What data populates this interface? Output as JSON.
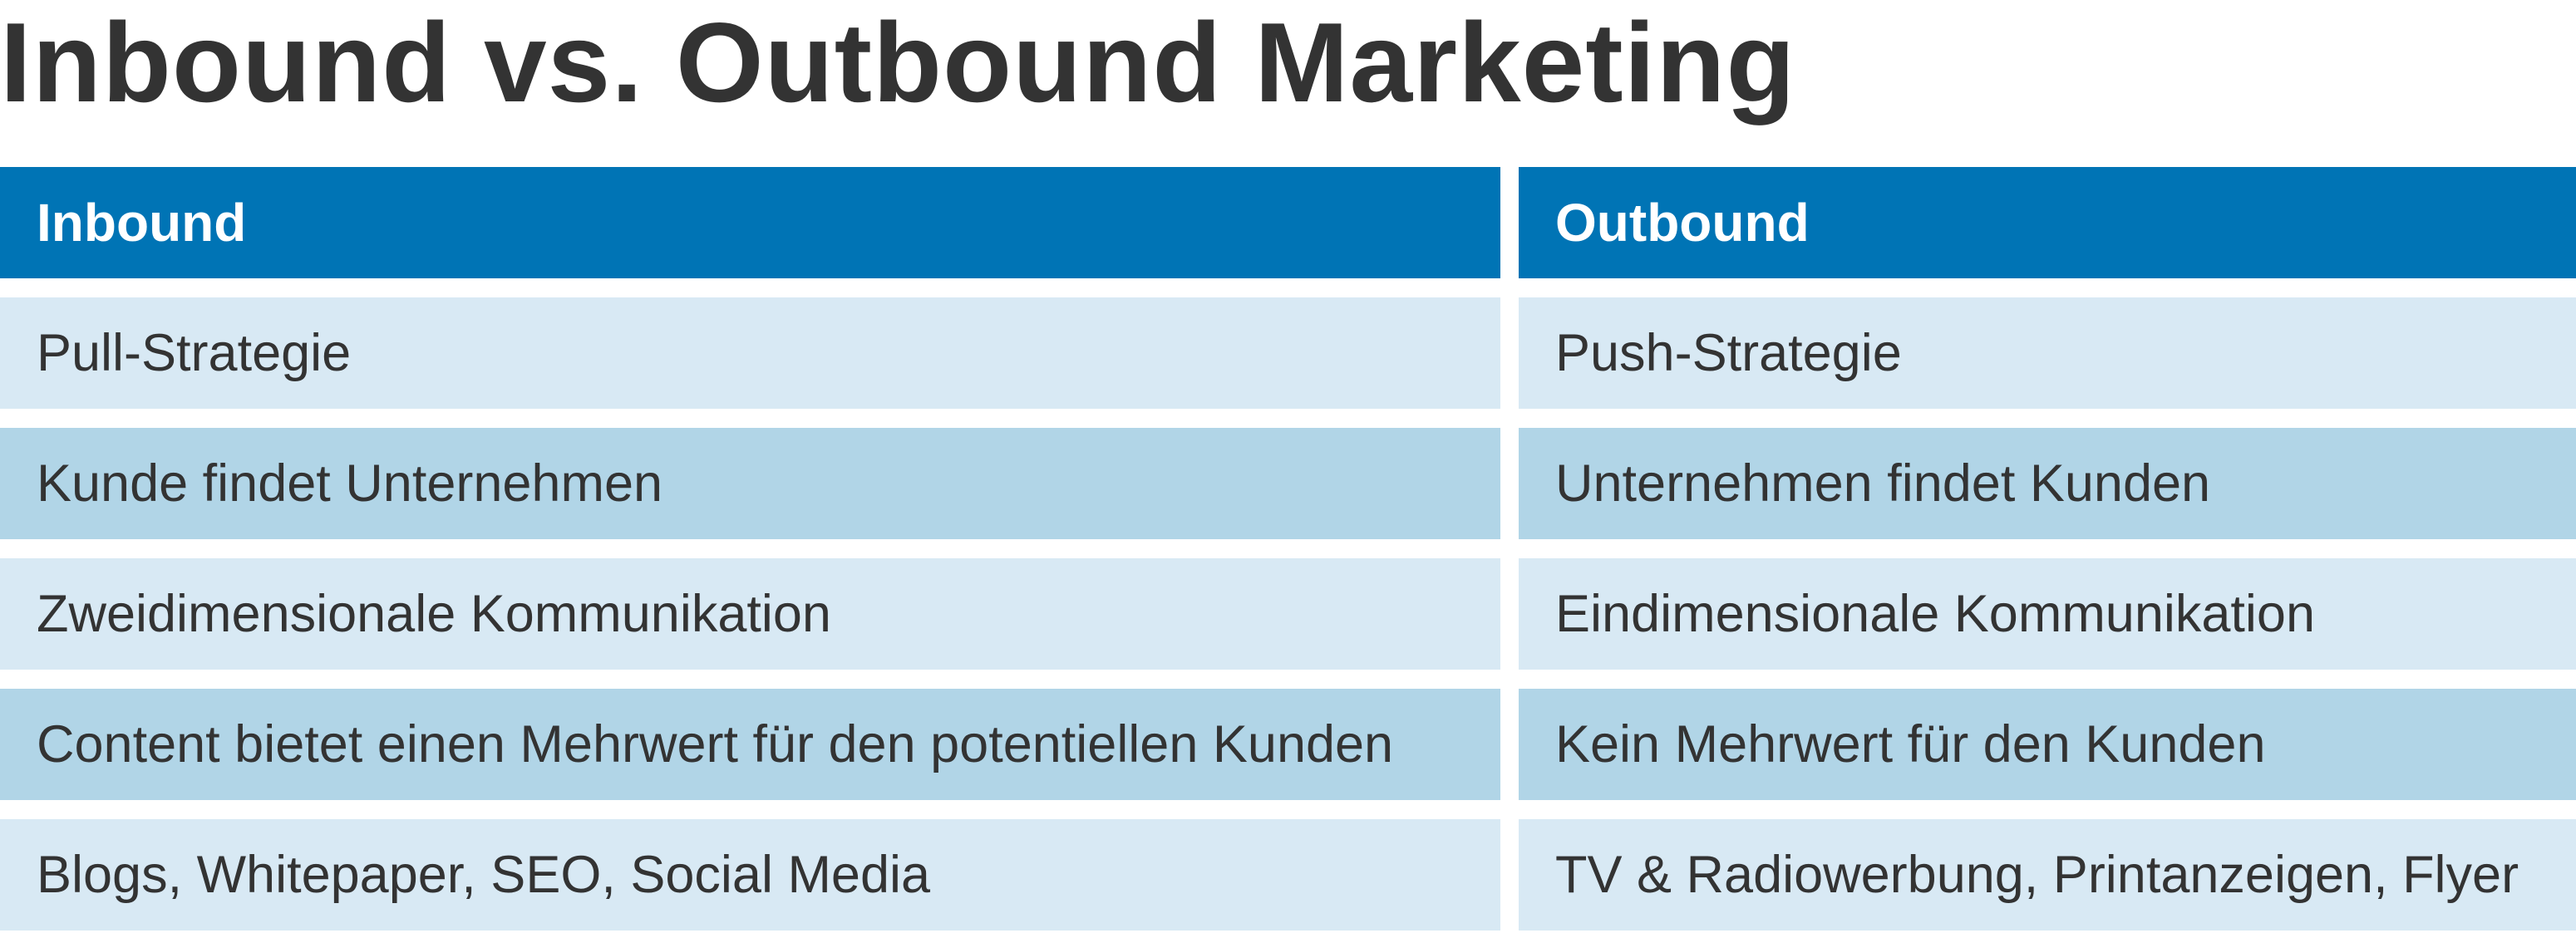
{
  "title": "Inbound vs. Outbound Marketing",
  "table": {
    "headers": [
      "Inbound",
      "Outbound"
    ],
    "rows": [
      [
        "Pull-Strategie",
        "Push-Strategie"
      ],
      [
        "Kunde findet Unternehmen",
        "Unternehmen findet Kunden"
      ],
      [
        "Zweidimensionale Kommunikation",
        "Eindimensionale Kommunikation"
      ],
      [
        "Content bietet einen Mehrwert für den potentiellen Kunden",
        "Kein Mehrwert für den Kunden"
      ],
      [
        "Blogs, Whitepaper, SEO, Social Media",
        "TV & Radiowerbung, Printanzeigen, Flyer"
      ]
    ]
  },
  "colors": {
    "header_bg": "#0074b5",
    "row_light": "#d8e9f4",
    "row_dark": "#b1d5e7",
    "text": "#333333"
  }
}
